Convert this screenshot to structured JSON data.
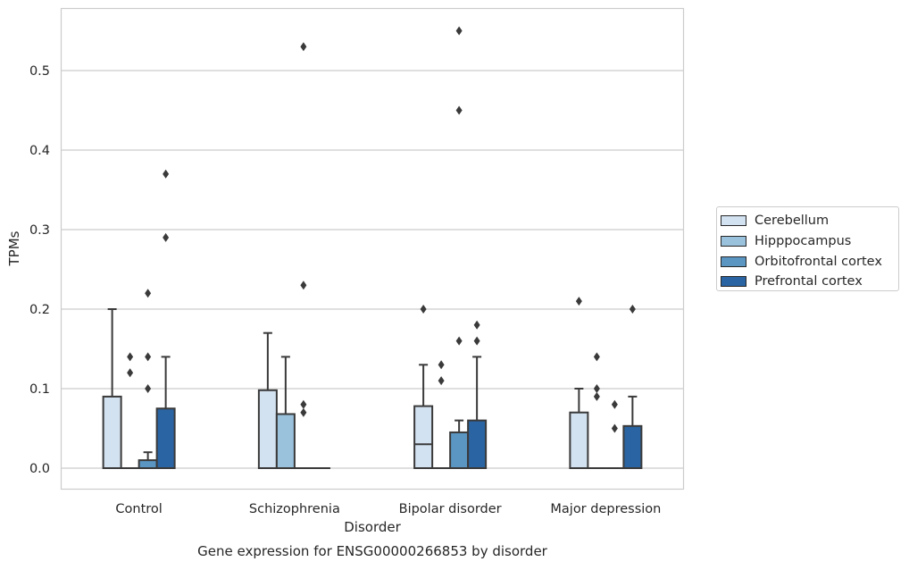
{
  "caption": "Gene expression for ENSG00000266853 by disorder",
  "chart_data": {
    "type": "box",
    "xlabel": "Disorder",
    "ylabel": "TPMs",
    "ylim": [
      -0.027,
      0.58
    ],
    "yticks": [
      0.0,
      0.1,
      0.2,
      0.3,
      0.4,
      0.5
    ],
    "ytick_labels": [
      "0.0",
      "0.1",
      "0.2",
      "0.3",
      "0.4",
      "0.5"
    ],
    "grid": "horizontal",
    "legend_position": "right",
    "categories": [
      "Control",
      "Schizophrenia",
      "Bipolar disorder",
      "Major depression"
    ],
    "series": [
      {
        "name": "Cerebellum",
        "color": "#d3e2f0",
        "boxes": [
          {
            "q1": 0,
            "median": 0,
            "q3": 0.09,
            "whisker_low": 0,
            "whisker_high": 0.2,
            "outliers": []
          },
          {
            "q1": 0,
            "median": 0,
            "q3": 0.098,
            "whisker_low": 0,
            "whisker_high": 0.17,
            "outliers": []
          },
          {
            "q1": 0,
            "median": 0.03,
            "q3": 0.078,
            "whisker_low": 0,
            "whisker_high": 0.13,
            "outliers": [
              0.2
            ]
          },
          {
            "q1": 0,
            "median": 0,
            "q3": 0.07,
            "whisker_low": 0,
            "whisker_high": 0.1,
            "outliers": [
              0.21
            ]
          }
        ]
      },
      {
        "name": "Hipppocampus",
        "color": "#9ac2dc",
        "boxes": [
          {
            "q1": 0,
            "median": 0,
            "q3": 0,
            "whisker_low": 0,
            "whisker_high": 0,
            "outliers": [
              0.12,
              0.14
            ]
          },
          {
            "q1": 0,
            "median": 0,
            "q3": 0.068,
            "whisker_low": 0,
            "whisker_high": 0.14,
            "outliers": []
          },
          {
            "q1": 0,
            "median": 0,
            "q3": 0,
            "whisker_low": 0,
            "whisker_high": 0,
            "outliers": [
              0.11,
              0.13
            ]
          },
          {
            "q1": 0,
            "median": 0,
            "q3": 0,
            "whisker_low": 0,
            "whisker_high": 0,
            "outliers": [
              0.09,
              0.1,
              0.14
            ]
          }
        ]
      },
      {
        "name": "Orbitofrontal cortex",
        "color": "#5b96c2",
        "boxes": [
          {
            "q1": 0,
            "median": 0,
            "q3": 0.01,
            "whisker_low": 0,
            "whisker_high": 0.02,
            "outliers": [
              0.1,
              0.14,
              0.22
            ]
          },
          {
            "q1": 0,
            "median": 0,
            "q3": 0,
            "whisker_low": 0,
            "whisker_high": 0,
            "outliers": [
              0.07,
              0.08,
              0.23,
              0.53
            ]
          },
          {
            "q1": 0,
            "median": 0,
            "q3": 0.045,
            "whisker_low": 0,
            "whisker_high": 0.06,
            "outliers": [
              0.16,
              0.45,
              0.55
            ]
          },
          {
            "q1": 0,
            "median": 0,
            "q3": 0,
            "whisker_low": 0,
            "whisker_high": 0,
            "outliers": [
              0.05,
              0.08
            ]
          }
        ]
      },
      {
        "name": "Prefrontal cortex",
        "color": "#2a64a2",
        "boxes": [
          {
            "q1": 0,
            "median": 0,
            "q3": 0.075,
            "whisker_low": 0,
            "whisker_high": 0.14,
            "outliers": [
              0.29,
              0.37
            ]
          },
          {
            "q1": 0,
            "median": 0,
            "q3": 0,
            "whisker_low": 0,
            "whisker_high": 0,
            "outliers": []
          },
          {
            "q1": 0,
            "median": 0,
            "q3": 0.06,
            "whisker_low": 0,
            "whisker_high": 0.14,
            "outliers": [
              0.16,
              0.18
            ]
          },
          {
            "q1": 0,
            "median": 0,
            "q3": 0.053,
            "whisker_low": 0,
            "whisker_high": 0.09,
            "outliers": [
              0.2
            ]
          }
        ]
      }
    ]
  }
}
